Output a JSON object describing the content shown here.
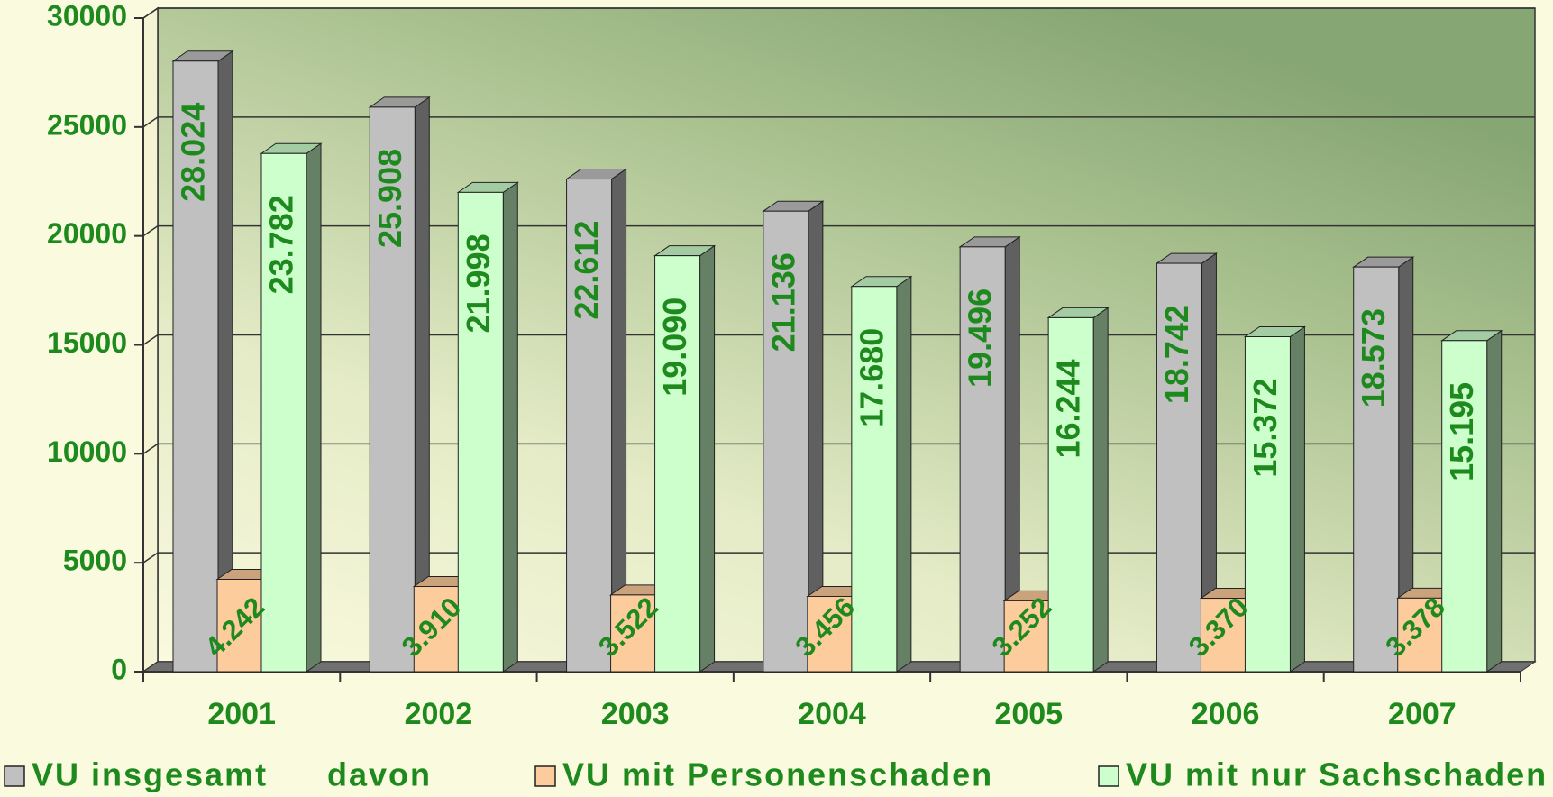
{
  "chart_data": {
    "type": "bar3d",
    "categories": [
      "2001",
      "2002",
      "2003",
      "2004",
      "2005",
      "2006",
      "2007"
    ],
    "series": [
      {
        "name": "VU insgesamt",
        "color": "#c0c0c0",
        "values": [
          28024,
          25908,
          22612,
          21136,
          19496,
          18742,
          18573
        ],
        "value_labels": [
          "28.024",
          "25.908",
          "22.612",
          "21.136",
          "19.496",
          "18.742",
          "18.573"
        ]
      },
      {
        "name": "VU mit Personenschaden",
        "color": "#fccc9c",
        "values": [
          4242,
          3910,
          3522,
          3456,
          3252,
          3370,
          3378
        ],
        "value_labels": [
          "4.242",
          "3.910",
          "3.522",
          "3.456",
          "3.252",
          "3.370",
          "3.378"
        ]
      },
      {
        "name": "VU mit nur Sachschaden",
        "color": "#ccffcc",
        "values": [
          23782,
          21998,
          19090,
          17680,
          16244,
          15372,
          15195
        ],
        "value_labels": [
          "23.782",
          "21.998",
          "19.090",
          "17.680",
          "16.244",
          "15.372",
          "15.195"
        ]
      }
    ],
    "legend_note": "davon",
    "ylim": [
      0,
      30000
    ],
    "yticks": [
      0,
      5000,
      10000,
      15000,
      20000,
      25000,
      30000
    ],
    "grid": true
  }
}
